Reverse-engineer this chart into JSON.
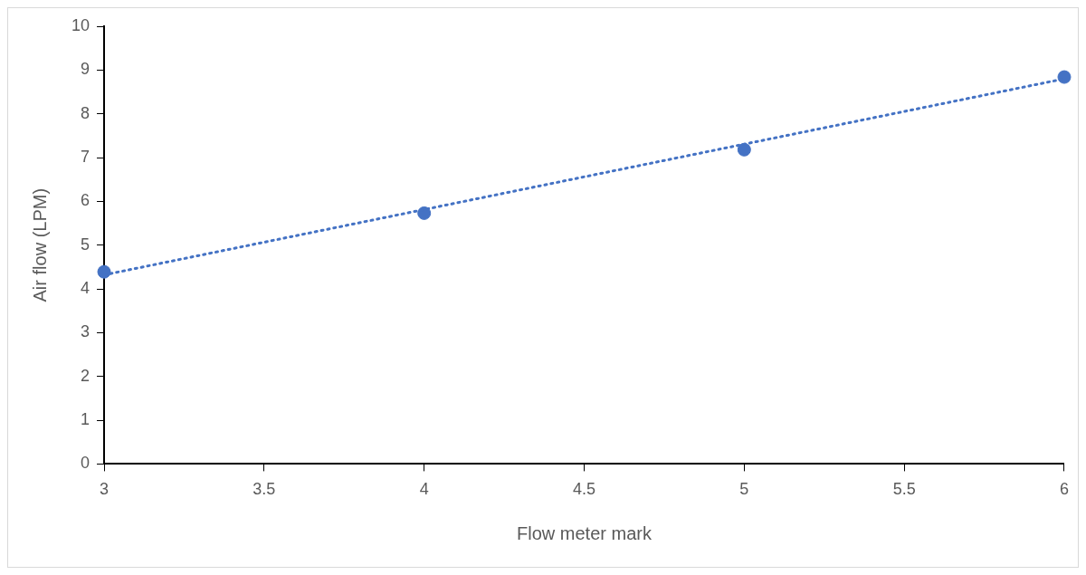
{
  "chart_data": {
    "type": "scatter",
    "xlabel": "Flow meter mark",
    "ylabel": "Air flow (LPM)",
    "xlim": [
      3,
      6
    ],
    "xticks": [
      3,
      3.5,
      4,
      4.5,
      5,
      5.5,
      6
    ],
    "ylim": [
      0,
      10
    ],
    "yticks": [
      0,
      1,
      2,
      3,
      4,
      5,
      6,
      7,
      8,
      9,
      10
    ],
    "grid": false,
    "legend": false,
    "marker": "circle",
    "series": [
      {
        "color": "#4472c4",
        "x": [
          3,
          4,
          5,
          6
        ],
        "values": [
          4.39,
          5.73,
          7.18,
          8.84
        ]
      },
      {
        "type": "line",
        "color": "#4472c4",
        "line_style": "dotted",
        "marker": "none",
        "x": [
          3,
          6
        ],
        "values": [
          4.32,
          8.8
        ]
      }
    ]
  }
}
